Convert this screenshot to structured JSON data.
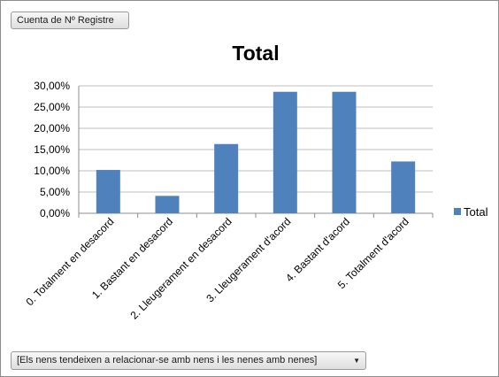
{
  "field_button": {
    "label": "Cuenta de Nº Registre"
  },
  "filter_dropdown": {
    "value": "[Els nens tendeixen a relacionar-se amb nens i les nenes amb nenes]"
  },
  "chart_data": {
    "type": "bar",
    "title": "Total",
    "categories": [
      "0. Totalment en desacord",
      "1. Bastant en desacord",
      "2. Lleugerament en desacord",
      "3. Lleugerament d'acord",
      "4. Bastant d'acord",
      "5. Totalment d'acord"
    ],
    "series": [
      {
        "name": "Total",
        "color": "#4f81bd",
        "values": [
          10.2,
          4.1,
          16.3,
          28.6,
          28.6,
          12.2
        ]
      }
    ],
    "ylim": [
      0,
      30
    ],
    "yticks": [
      "0,00%",
      "5,00%",
      "10,00%",
      "15,00%",
      "20,00%",
      "25,00%",
      "30,00%"
    ],
    "grid": true,
    "legend": "right"
  }
}
